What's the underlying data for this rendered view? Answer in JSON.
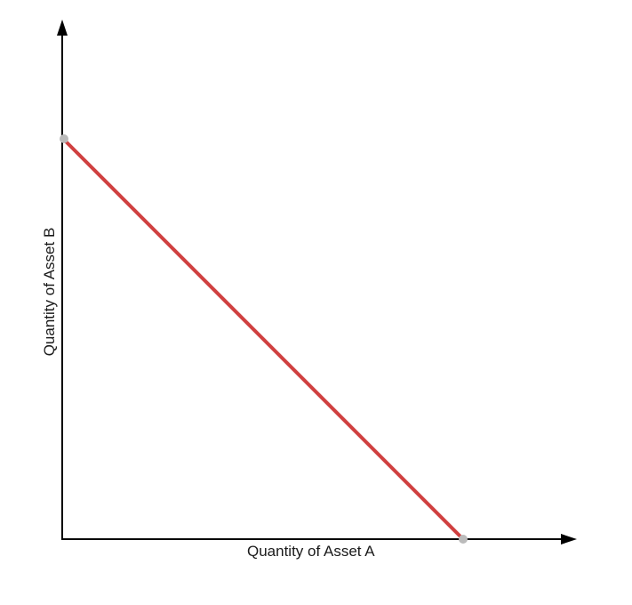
{
  "diagram": {
    "x_axis_label": "Quantity of Asset A",
    "y_axis_label": "Quantity of Asset B",
    "line_color": "#d04040",
    "endpoint_color": "#bbbbbb",
    "axis_color": "#000000"
  }
}
